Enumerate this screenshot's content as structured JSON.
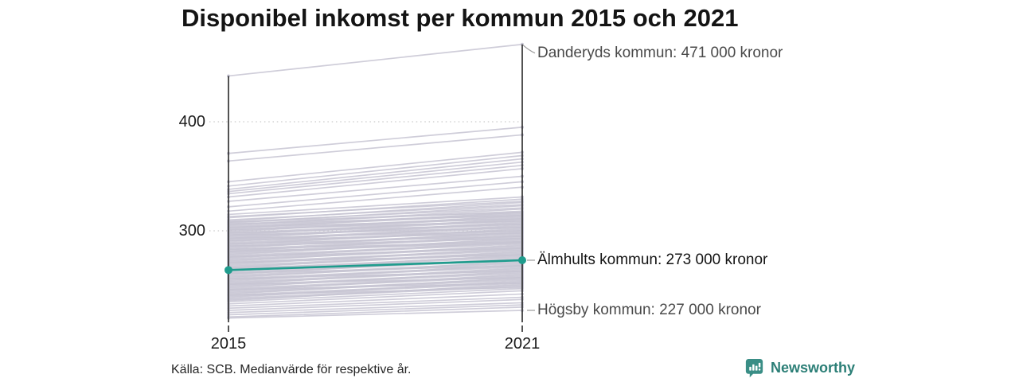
{
  "title": "Disponibel inkomst per kommun 2015 och 2021",
  "source": "Källa: SCB. Medianvärde för respektive år.",
  "brand": {
    "name": "Newsworthy"
  },
  "colors": {
    "highlight": "#1f9c8d",
    "background_line": "#c7c5d3",
    "axis": "#1a1a1a",
    "gridline": "#cbcbcb",
    "connector": "#9a9a9a",
    "annotation_muted": "#4a4a4a",
    "annotation_strong": "#141414",
    "brand_icon": "#3a8e86"
  },
  "chart_data": {
    "type": "line",
    "subtype": "slope",
    "x": [
      2015,
      2021
    ],
    "x_tick_labels": [
      "2015",
      "2021"
    ],
    "y_ticks": [
      400,
      300
    ],
    "y_tick_labels": [
      "400",
      "300"
    ],
    "ylim": [
      219,
      471
    ],
    "grid": "dotted-horizontal",
    "annotations": [
      {
        "label": "Danderyds kommun: 471 000 kronor",
        "value_2021": 471,
        "emphasis": false,
        "dy": 11,
        "connector": "elbow"
      },
      {
        "label": "Älmhults kommun: 273 000 kronor",
        "value_2021": 273,
        "emphasis": true,
        "dy": 0,
        "connector": "dash"
      },
      {
        "label": "Högsby kommun: 227 000 kronor",
        "value_2021": 227,
        "emphasis": false,
        "dy": 0,
        "connector": "dash"
      }
    ],
    "highlighted_series": {
      "name": "Älmhults kommun",
      "values": [
        264,
        273
      ]
    },
    "labeled_series": [
      {
        "name": "Danderyds kommun",
        "values": [
          442,
          471
        ]
      },
      {
        "name": "Högsby kommun",
        "values": [
          220,
          227
        ]
      }
    ],
    "background_series": [
      [
        371,
        395
      ],
      [
        364,
        388
      ],
      [
        345,
        372
      ],
      [
        341,
        369
      ],
      [
        338,
        366
      ],
      [
        336,
        363
      ],
      [
        334,
        360
      ],
      [
        331,
        357
      ],
      [
        327,
        350
      ],
      [
        322,
        345
      ],
      [
        318,
        340
      ],
      [
        315,
        331
      ],
      [
        313,
        327
      ],
      [
        312,
        329
      ],
      [
        310,
        324
      ],
      [
        309,
        326
      ],
      [
        308,
        321
      ],
      [
        307,
        323
      ],
      [
        306,
        318
      ],
      [
        305,
        320
      ],
      [
        304,
        316
      ],
      [
        303,
        315
      ],
      [
        302,
        317
      ],
      [
        301,
        313
      ],
      [
        300,
        312
      ],
      [
        299,
        314
      ],
      [
        298,
        310
      ],
      [
        297,
        309
      ],
      [
        296,
        311
      ],
      [
        295,
        307
      ],
      [
        294,
        306
      ],
      [
        293,
        308
      ],
      [
        292,
        304
      ],
      [
        291,
        303
      ],
      [
        290,
        305
      ],
      [
        289,
        301
      ],
      [
        288,
        300
      ],
      [
        287,
        302
      ],
      [
        286,
        298
      ],
      [
        285,
        297
      ],
      [
        284,
        299
      ],
      [
        283,
        295
      ],
      [
        282,
        294
      ],
      [
        281,
        296
      ],
      [
        280,
        292
      ],
      [
        279,
        291
      ],
      [
        278,
        293
      ],
      [
        277,
        289
      ],
      [
        276,
        288
      ],
      [
        275,
        290
      ],
      [
        274,
        286
      ],
      [
        273,
        285
      ],
      [
        272,
        287
      ],
      [
        271,
        283
      ],
      [
        270,
        282
      ],
      [
        269,
        284
      ],
      [
        268,
        280
      ],
      [
        267,
        279
      ],
      [
        266,
        281
      ],
      [
        265,
        277
      ],
      [
        264,
        276
      ],
      [
        263,
        278
      ],
      [
        262,
        274
      ],
      [
        261,
        273
      ],
      [
        260,
        275
      ],
      [
        259,
        271
      ],
      [
        258,
        270
      ],
      [
        257,
        272
      ],
      [
        256,
        268
      ],
      [
        255,
        267
      ],
      [
        254,
        269
      ],
      [
        253,
        265
      ],
      [
        252,
        264
      ],
      [
        251,
        266
      ],
      [
        250,
        262
      ],
      [
        249,
        261
      ],
      [
        248,
        263
      ],
      [
        247,
        259
      ],
      [
        246,
        258
      ],
      [
        245,
        260
      ],
      [
        244,
        256
      ],
      [
        243,
        255
      ],
      [
        242,
        257
      ],
      [
        241,
        253
      ],
      [
        240,
        252
      ],
      [
        239,
        254
      ],
      [
        238,
        250
      ],
      [
        237,
        249
      ],
      [
        236,
        251
      ],
      [
        235,
        247
      ],
      [
        306,
        314
      ],
      [
        301,
        309
      ],
      [
        296,
        303
      ],
      [
        291,
        298
      ],
      [
        286,
        293
      ],
      [
        281,
        289
      ],
      [
        276,
        284
      ],
      [
        271,
        278
      ],
      [
        266,
        273
      ],
      [
        261,
        268
      ],
      [
        256,
        263
      ],
      [
        251,
        257
      ],
      [
        246,
        252
      ],
      [
        241,
        248
      ],
      [
        308,
        317
      ],
      [
        303,
        311
      ],
      [
        298,
        306
      ],
      [
        293,
        300
      ],
      [
        288,
        295
      ],
      [
        283,
        290
      ],
      [
        233,
        245
      ],
      [
        231,
        242
      ],
      [
        229,
        239
      ],
      [
        227,
        237
      ],
      [
        225,
        234
      ],
      [
        223,
        232
      ],
      [
        221,
        230
      ]
    ]
  }
}
